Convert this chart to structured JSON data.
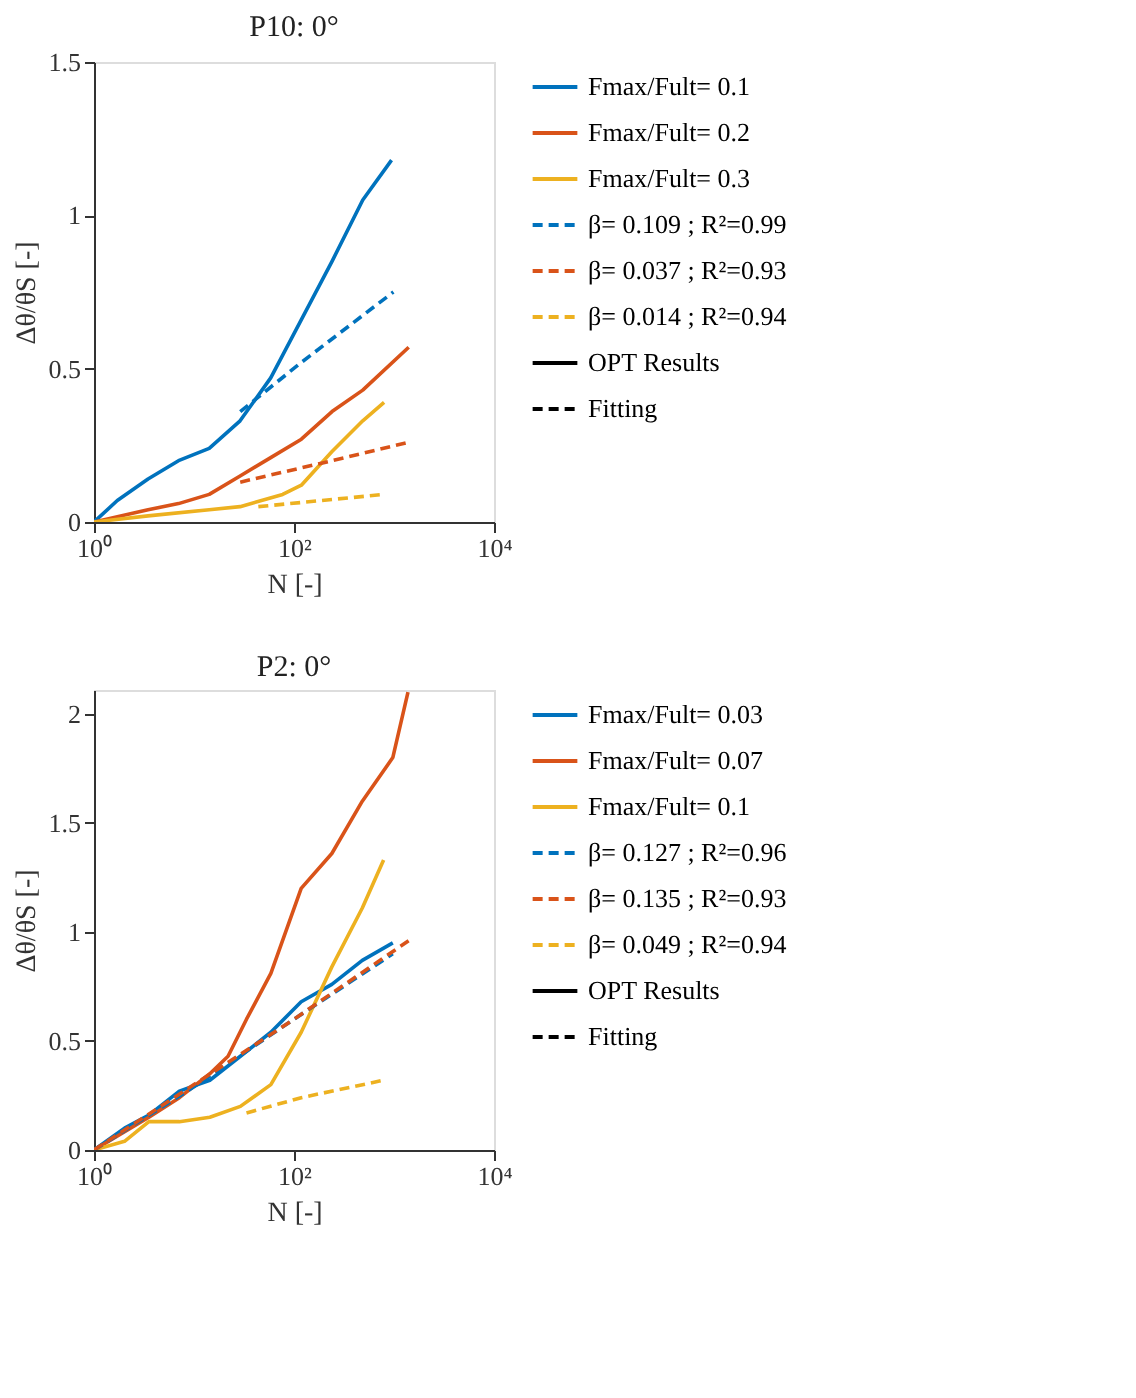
{
  "chart_data": [
    {
      "type": "line",
      "title": "P10: 0°",
      "xlabel": "N [-]",
      "ylabel": "Δθ/θS [-]",
      "log": "x",
      "xlim": [
        1,
        10000
      ],
      "xticks": [
        {
          "value": 1,
          "label": "10⁰"
        },
        {
          "value": 100,
          "label": "10²"
        },
        {
          "value": 10000,
          "label": "10⁴"
        }
      ],
      "ylim": [
        0,
        1.5
      ],
      "yticks": [
        0,
        0.5,
        1,
        1.5
      ],
      "grid": false,
      "legend": "right",
      "marker": "none",
      "series": [
        {
          "name": "Fmax/Fult= 0.1",
          "color": "#0072bd",
          "line_style": "solid",
          "x": [
            1,
            1.71,
            3.47,
            7.0,
            14.2,
            28.9,
            58.5,
            118.5,
            240,
            487,
            945
          ],
          "values": [
            0,
            0.07,
            0.14,
            0.2,
            0.24,
            0.33,
            0.47,
            0.66,
            0.85,
            1.05,
            1.18
          ]
        },
        {
          "name": "Fmax/Fult= 0.2",
          "color": "#d95319",
          "line_style": "solid",
          "x": [
            1,
            3.47,
            7.0,
            14.2,
            28.9,
            58.5,
            118.5,
            240,
            487,
            1403
          ],
          "values": [
            0,
            0.04,
            0.06,
            0.09,
            0.15,
            0.21,
            0.27,
            0.36,
            0.43,
            0.57
          ]
        },
        {
          "name": "Fmax/Fult= 0.3",
          "color": "#edb120",
          "line_style": "solid",
          "x": [
            1,
            3.47,
            14.2,
            28.9,
            77,
            118.5,
            240,
            487,
            796
          ],
          "values": [
            0,
            0.02,
            0.04,
            0.05,
            0.09,
            0.12,
            0.23,
            0.33,
            0.39
          ]
        },
        {
          "name": "β= 0.109 ; R²=0.99",
          "color": "#0072bd",
          "line_style": "dashed",
          "x": [
            29,
            118,
            986
          ],
          "values": [
            0.36,
            0.52,
            0.75
          ]
        },
        {
          "name": "β= 0.037 ; R²=0.93",
          "color": "#d95319",
          "line_style": "dashed",
          "x": [
            29,
            240,
            1403
          ],
          "values": [
            0.13,
            0.2,
            0.26
          ]
        },
        {
          "name": "β= 0.014 ; R²=0.94",
          "color": "#edb120",
          "line_style": "dashed",
          "x": [
            44,
            796
          ],
          "values": [
            0.05,
            0.09
          ]
        },
        {
          "name": "OPT Results",
          "color": "#000000",
          "line_style": "solid"
        },
        {
          "name": "Fitting",
          "color": "#000000",
          "line_style": "dashed"
        }
      ]
    },
    {
      "type": "line",
      "title": "P2: 0°",
      "xlabel": "N [-]",
      "ylabel": "Δθ/θS [-]",
      "log": "x",
      "xlim": [
        1,
        10000
      ],
      "xticks": [
        {
          "value": 1,
          "label": "10⁰"
        },
        {
          "value": 100,
          "label": "10²"
        },
        {
          "value": 10000,
          "label": "10⁴"
        }
      ],
      "ylim": [
        0,
        2.11
      ],
      "yticks": [
        0,
        0.5,
        1,
        1.5,
        2
      ],
      "grid": false,
      "legend": "right",
      "marker": "none",
      "series": [
        {
          "name": "Fmax/Fult= 0.03",
          "color": "#0072bd",
          "line_style": "solid",
          "x": [
            1,
            2.02,
            3.54,
            7.14,
            14.4,
            29.1,
            58.7,
            118,
            239,
            482,
            973
          ],
          "values": [
            0,
            0.1,
            0.16,
            0.27,
            0.32,
            0.43,
            0.54,
            0.68,
            0.76,
            0.87,
            0.95
          ]
        },
        {
          "name": "Fmax/Fult= 0.07",
          "color": "#d95319",
          "line_style": "solid",
          "x": [
            1,
            3.54,
            7.14,
            14.4,
            21.9,
            33.5,
            58.7,
            118,
            239,
            482,
            973,
            1380
          ],
          "values": [
            0,
            0.15,
            0.24,
            0.35,
            0.43,
            0.6,
            0.81,
            1.2,
            1.36,
            1.6,
            1.8,
            2.1
          ]
        },
        {
          "name": "Fmax/Fult= 0.1",
          "color": "#edb120",
          "line_style": "solid",
          "x": [
            1,
            2.02,
            3.54,
            7.14,
            14.4,
            29.1,
            58.7,
            118,
            239,
            482,
            787
          ],
          "values": [
            0,
            0.04,
            0.13,
            0.13,
            0.15,
            0.2,
            0.3,
            0.54,
            0.84,
            1.11,
            1.33
          ]
        },
        {
          "name": "β= 0.127 ; R²=0.96",
          "color": "#0072bd",
          "line_style": "dashed",
          "x": [
            1,
            10,
            100,
            973
          ],
          "values": [
            0,
            0.29,
            0.6,
            0.9
          ]
        },
        {
          "name": "β= 0.135 ; R²=0.93",
          "color": "#d95319",
          "line_style": "dashed",
          "x": [
            1,
            10,
            100,
            1400
          ],
          "values": [
            0,
            0.3,
            0.6,
            0.96
          ]
        },
        {
          "name": "β= 0.049 ; R²=0.94",
          "color": "#edb120",
          "line_style": "dashed",
          "x": [
            33.5,
            118,
            787
          ],
          "values": [
            0.17,
            0.24,
            0.32
          ]
        },
        {
          "name": "OPT Results",
          "color": "#000000",
          "line_style": "solid"
        },
        {
          "name": "Fitting",
          "color": "#000000",
          "line_style": "dashed"
        }
      ]
    }
  ]
}
